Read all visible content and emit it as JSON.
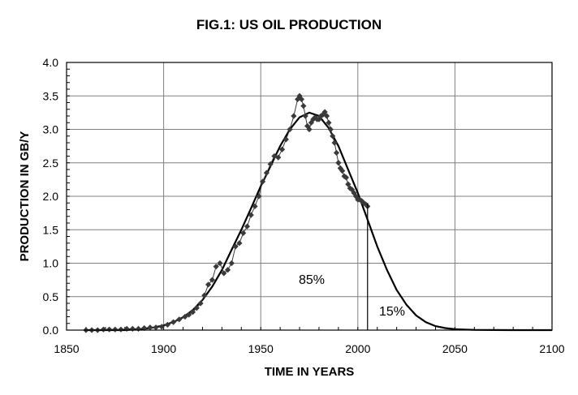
{
  "chart_data": {
    "type": "scatter",
    "title": "FIG.1: US OIL PRODUCTION",
    "xlabel": "TIME IN YEARS",
    "ylabel": "PRODUCTION IN GB/Y",
    "xlim": [
      1850,
      2100
    ],
    "ylim": [
      0,
      4.0
    ],
    "x_ticks": [
      "1850",
      "1900",
      "1950",
      "2000",
      "2050",
      "2100"
    ],
    "y_ticks": [
      "0.0",
      "0.5",
      "1.0",
      "1.5",
      "2.0",
      "2.5",
      "3.0",
      "3.5",
      "4.0"
    ],
    "grid": true,
    "legend": "none",
    "annotations": [
      {
        "text": "85%",
        "x": 1976,
        "y": 0.75
      },
      {
        "text": "15%",
        "x": 2017,
        "y": 0.27
      }
    ],
    "marker_line": {
      "x": 2005,
      "y": 1.9
    },
    "series": [
      {
        "kind": "markers",
        "x": [
          1860,
          1863,
          1866,
          1869,
          1872,
          1875,
          1878,
          1881,
          1884,
          1887,
          1890,
          1893,
          1896,
          1899,
          1902,
          1905,
          1908,
          1911,
          1913,
          1915,
          1917,
          1919,
          1921,
          1923,
          1925,
          1927,
          1929,
          1931,
          1933,
          1935,
          1937,
          1939,
          1941,
          1943,
          1945,
          1947,
          1949,
          1951,
          1953,
          1955,
          1957,
          1959,
          1961,
          1963,
          1965,
          1967,
          1969,
          1970,
          1971,
          1972,
          1973,
          1974,
          1975,
          1976,
          1977,
          1978,
          1979,
          1980,
          1981,
          1982,
          1983,
          1984,
          1985,
          1986,
          1987,
          1988,
          1989,
          1990,
          1991,
          1992,
          1993,
          1994,
          1995,
          1996,
          1997,
          1998,
          1999,
          2000,
          2001,
          2002,
          2003,
          2004,
          2005
        ],
        "y": [
          0.0,
          0.0,
          0.0,
          0.01,
          0.01,
          0.01,
          0.01,
          0.02,
          0.02,
          0.02,
          0.03,
          0.04,
          0.04,
          0.05,
          0.08,
          0.12,
          0.16,
          0.2,
          0.23,
          0.27,
          0.33,
          0.4,
          0.52,
          0.68,
          0.75,
          0.95,
          1.0,
          0.85,
          0.9,
          1.0,
          1.25,
          1.3,
          1.45,
          1.55,
          1.72,
          1.85,
          2.0,
          2.22,
          2.35,
          2.48,
          2.6,
          2.58,
          2.7,
          2.85,
          3.0,
          3.2,
          3.45,
          3.5,
          3.45,
          3.35,
          3.2,
          3.05,
          3.0,
          3.1,
          3.15,
          3.18,
          3.15,
          3.15,
          3.2,
          3.22,
          3.26,
          3.2,
          3.1,
          3.0,
          2.9,
          2.8,
          2.65,
          2.5,
          2.42,
          2.38,
          2.3,
          2.28,
          2.18,
          2.12,
          2.1,
          2.05,
          2.0,
          1.95,
          1.95,
          1.93,
          1.9,
          1.88,
          1.85
        ]
      },
      {
        "kind": "fit-curve",
        "x": [
          1860,
          1870,
          1880,
          1890,
          1895,
          1900,
          1905,
          1910,
          1915,
          1920,
          1925,
          1930,
          1935,
          1940,
          1945,
          1950,
          1955,
          1960,
          1965,
          1970,
          1975,
          1980,
          1985,
          1990,
          1995,
          2000,
          2005,
          2010,
          2015,
          2020,
          2025,
          2030,
          2035,
          2040,
          2045,
          2050,
          2055,
          2060,
          2065,
          2070,
          2080,
          2090,
          2100
        ],
        "y": [
          0.0,
          0.0,
          0.0,
          0.02,
          0.04,
          0.07,
          0.12,
          0.19,
          0.3,
          0.45,
          0.65,
          0.9,
          1.2,
          1.5,
          1.82,
          2.15,
          2.45,
          2.75,
          3.0,
          3.18,
          3.25,
          3.2,
          3.02,
          2.75,
          2.4,
          2.05,
          1.65,
          1.25,
          0.9,
          0.6,
          0.38,
          0.22,
          0.12,
          0.06,
          0.03,
          0.015,
          0.008,
          0.004,
          0.002,
          0.001,
          0.0,
          0.0,
          0.0
        ]
      }
    ]
  }
}
